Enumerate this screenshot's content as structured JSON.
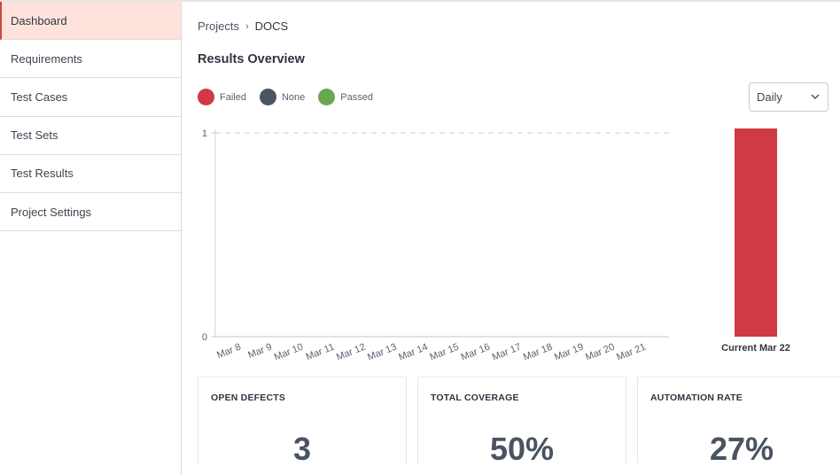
{
  "sidebar": {
    "items": [
      {
        "label": "Dashboard",
        "active": true
      },
      {
        "label": "Requirements"
      },
      {
        "label": "Test Cases"
      },
      {
        "label": "Test Sets"
      },
      {
        "label": "Test Results"
      },
      {
        "label": "Project Settings"
      }
    ]
  },
  "breadcrumb": {
    "project_link": "Projects",
    "current": "DOCS"
  },
  "page_title": "Results Overview",
  "legend": [
    {
      "label": "Failed",
      "color": "#cf3a44"
    },
    {
      "label": "None",
      "color": "#4c5563"
    },
    {
      "label": "Passed",
      "color": "#6aa84f"
    }
  ],
  "period_select": {
    "value": "Daily",
    "icon": "chevron-down-icon"
  },
  "chart_data": {
    "type": "bar",
    "y_ticks": [
      "0",
      "1"
    ],
    "ylim": [
      0,
      1
    ],
    "categories": [
      "Mar 8",
      "Mar 9",
      "Mar 10",
      "Mar 11",
      "Mar 12",
      "Mar 13",
      "Mar 14",
      "Mar 15",
      "Mar 16",
      "Mar 17",
      "Mar 18",
      "Mar 19",
      "Mar 20",
      "Mar 21"
    ],
    "series": [
      {
        "name": "Failed",
        "color": "#cf3a44",
        "values": [
          0,
          0,
          0,
          0,
          0,
          0,
          0,
          0,
          0,
          0,
          0,
          0,
          0,
          0
        ]
      },
      {
        "name": "None",
        "color": "#4c5563",
        "values": [
          0,
          0,
          0,
          0,
          0,
          0,
          0,
          0,
          0,
          0,
          0,
          0,
          0,
          0
        ]
      },
      {
        "name": "Passed",
        "color": "#6aa84f",
        "values": [
          0,
          0,
          0,
          0,
          0,
          0,
          0,
          0,
          0,
          0,
          0,
          0,
          0,
          0
        ]
      }
    ],
    "current": {
      "label": "Current Mar 22",
      "Failed": 1,
      "None": 0,
      "Passed": 0
    },
    "grid": true
  },
  "cards": [
    {
      "label": "OPEN DEFECTS",
      "value": "3"
    },
    {
      "label": "TOTAL COVERAGE",
      "value": "50%"
    },
    {
      "label": "AUTOMATION RATE",
      "value": "27%"
    }
  ]
}
